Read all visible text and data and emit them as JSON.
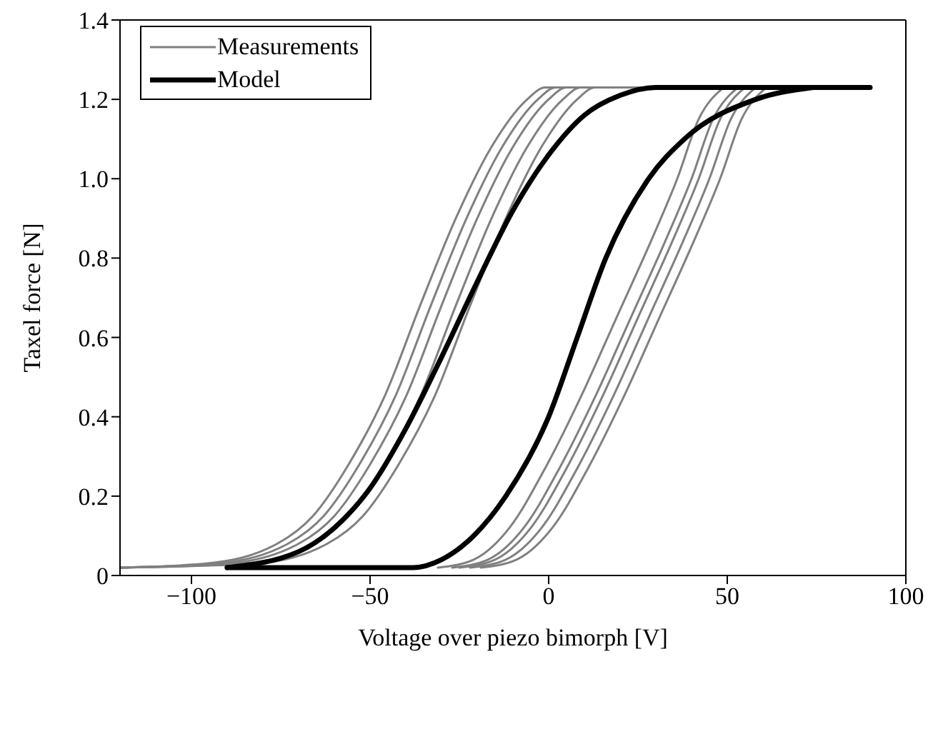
{
  "chart_data": {
    "type": "line",
    "xlabel": "Voltage over piezo bimorph [V]",
    "ylabel": "Taxel force [N]",
    "xlim": [
      -120,
      100
    ],
    "ylim": [
      0,
      1.4
    ],
    "xticks": [
      {
        "value": -100,
        "label": "−100"
      },
      {
        "value": -50,
        "label": "−50"
      },
      0,
      50,
      100
    ],
    "yticks": [
      0,
      0.2,
      0.4,
      0.6,
      0.8,
      {
        "value": 1.0,
        "label": "1.0"
      },
      1.2,
      1.4
    ],
    "legend": "top left",
    "marker": "none",
    "line_style": "solid",
    "series": [
      {
        "name": "Measurements",
        "color": "#808080",
        "x": [
          -120,
          -96,
          -76,
          -66,
          -56,
          -46,
          -36,
          -26,
          -16,
          -6,
          -1,
          49
        ],
        "values": [
          0.02,
          0.03,
          0.08,
          0.15,
          0.28,
          0.45,
          0.68,
          0.9,
          1.08,
          1.2,
          1.23,
          1.23
        ]
      },
      {
        "color": "#808080",
        "x": [
          -31,
          -21,
          -11,
          -1,
          9,
          19,
          29,
          36,
          42,
          49
        ],
        "values": [
          0.02,
          0.04,
          0.12,
          0.27,
          0.45,
          0.65,
          0.85,
          1.0,
          1.15,
          1.23
        ]
      },
      {
        "color": "#808080",
        "x": [
          -120,
          -93,
          -73,
          -63,
          -53,
          -43,
          -33,
          -23,
          -13,
          -3,
          2,
          53
        ],
        "values": [
          0.02,
          0.03,
          0.08,
          0.15,
          0.28,
          0.45,
          0.68,
          0.9,
          1.08,
          1.2,
          1.23,
          1.23
        ]
      },
      {
        "color": "#808080",
        "x": [
          -27,
          -17,
          -7,
          3,
          13,
          23,
          33,
          40,
          46,
          53
        ],
        "values": [
          0.02,
          0.04,
          0.12,
          0.27,
          0.45,
          0.65,
          0.85,
          1.0,
          1.15,
          1.23
        ]
      },
      {
        "color": "#808080",
        "x": [
          -120,
          -90,
          -70,
          -60,
          -50,
          -40,
          -30,
          -20,
          -10,
          0,
          5,
          55
        ],
        "values": [
          0.02,
          0.03,
          0.08,
          0.15,
          0.28,
          0.45,
          0.68,
          0.9,
          1.08,
          1.2,
          1.23,
          1.23
        ]
      },
      {
        "color": "#808080",
        "x": [
          -25,
          -15,
          -5,
          5,
          15,
          25,
          35,
          42,
          48,
          55
        ],
        "values": [
          0.02,
          0.04,
          0.12,
          0.27,
          0.45,
          0.65,
          0.85,
          1.0,
          1.15,
          1.23
        ]
      },
      {
        "color": "#808080",
        "x": [
          -120,
          -86,
          -66,
          -56,
          -46,
          -36,
          -26,
          -16,
          -6,
          4,
          9,
          58
        ],
        "values": [
          0.02,
          0.03,
          0.08,
          0.15,
          0.28,
          0.45,
          0.68,
          0.9,
          1.08,
          1.2,
          1.23,
          1.23
        ]
      },
      {
        "color": "#808080",
        "x": [
          -22,
          -12,
          -2,
          8,
          18,
          28,
          38,
          45,
          51,
          58
        ],
        "values": [
          0.02,
          0.04,
          0.12,
          0.27,
          0.45,
          0.65,
          0.85,
          1.0,
          1.15,
          1.23
        ]
      },
      {
        "color": "#808080",
        "x": [
          -120,
          -82,
          -62,
          -52,
          -42,
          -32,
          -22,
          -12,
          -2,
          8,
          13,
          61
        ],
        "values": [
          0.02,
          0.03,
          0.08,
          0.15,
          0.28,
          0.45,
          0.68,
          0.9,
          1.08,
          1.2,
          1.23,
          1.23
        ]
      },
      {
        "color": "#808080",
        "x": [
          -19,
          -9,
          1,
          11,
          21,
          31,
          41,
          48,
          54,
          61
        ],
        "values": [
          0.02,
          0.04,
          0.12,
          0.27,
          0.45,
          0.65,
          0.85,
          1.0,
          1.15,
          1.23
        ]
      },
      {
        "name": "Model",
        "color": "#000000",
        "x": [
          -90,
          -70,
          -60,
          -50,
          -40,
          -30,
          -20,
          -10,
          0,
          10,
          20,
          30,
          90
        ],
        "values": [
          0.02,
          0.06,
          0.12,
          0.22,
          0.37,
          0.55,
          0.74,
          0.92,
          1.06,
          1.16,
          1.21,
          1.23,
          1.23
        ]
      },
      {
        "color": "#000000",
        "x": [
          -90,
          -38,
          -30,
          -21,
          -12,
          0,
          8,
          16,
          28,
          38,
          58,
          74
        ],
        "values": [
          0.02,
          0.02,
          0.04,
          0.1,
          0.2,
          0.4,
          0.6,
          0.8,
          1.0,
          1.1,
          1.2,
          1.23
        ]
      }
    ]
  }
}
